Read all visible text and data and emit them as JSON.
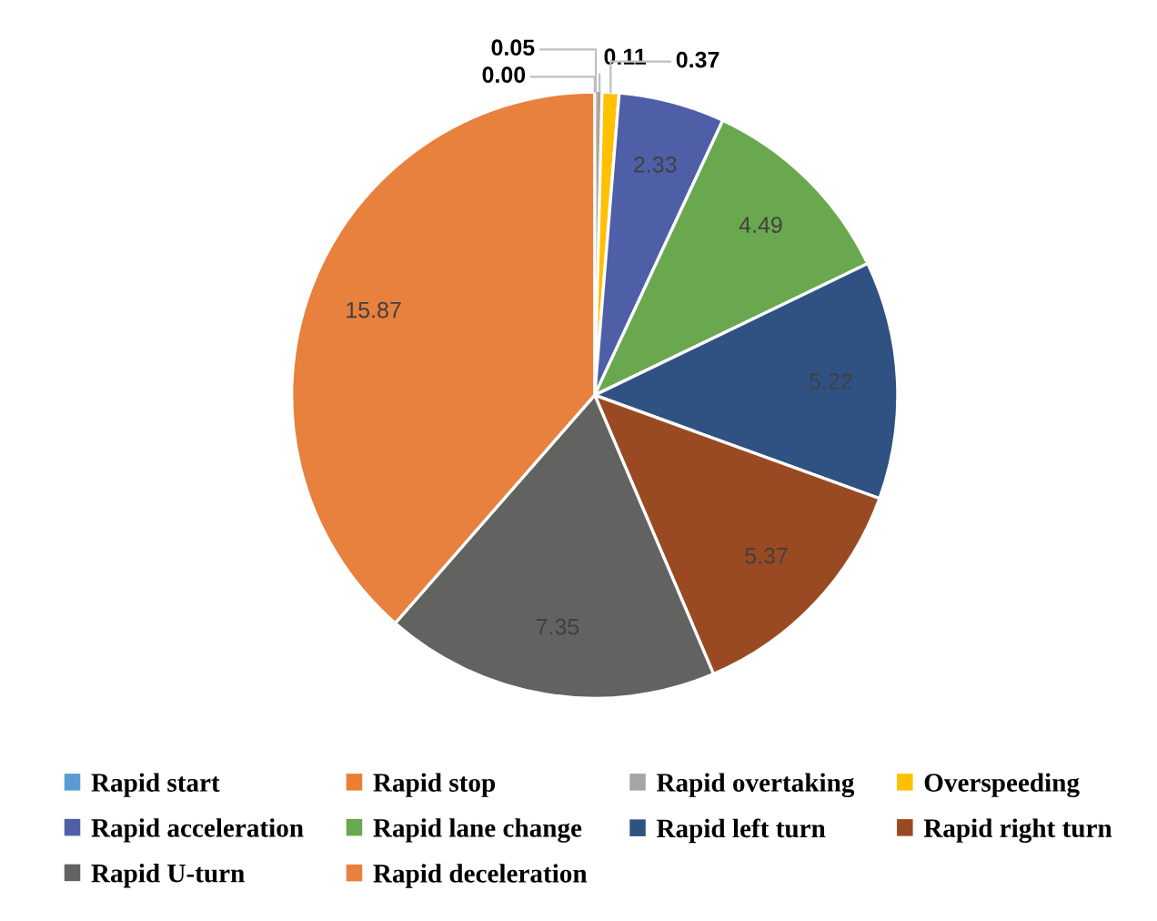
{
  "chart_data": {
    "type": "pie",
    "categories": [
      "Rapid start",
      "Rapid stop",
      "Rapid overtaking",
      "Overspeeding",
      "Rapid acceleration",
      "Rapid lane change",
      "Rapid left turn",
      "Rapid right turn",
      "Rapid U-turn",
      "Rapid deceleration"
    ],
    "values": [
      0.0,
      0.05,
      0.11,
      0.37,
      2.33,
      4.49,
      5.22,
      5.37,
      7.35,
      15.87
    ],
    "colors": [
      "#5b9bd5",
      "#ed7d31",
      "#a5a5a5",
      "#ffc000",
      "#4e5fa8",
      "#6aa84f",
      "#2f5283",
      "#9a4a22",
      "#626260",
      "#e8803e"
    ],
    "value_labels": [
      "0.00",
      "0.05",
      "0.11",
      "0.37",
      "2.33",
      "4.49",
      "5.22",
      "5.37",
      "7.35",
      "15.87"
    ],
    "legend": "bottom"
  }
}
